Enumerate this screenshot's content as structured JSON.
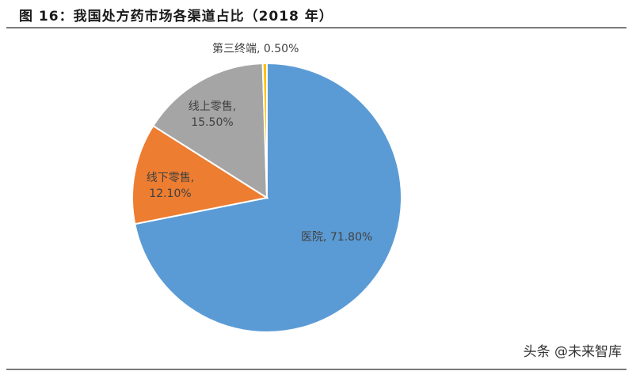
{
  "figure": {
    "title": "图 16：我国处方药市场各渠道占比（2018 年）"
  },
  "watermark": "头条 @未来智库",
  "chart_data": {
    "type": "pie",
    "title": "图 16：我国处方药市场各渠道占比（2018 年）",
    "categories": [
      "医院",
      "线下零售",
      "线上零售",
      "第三终端"
    ],
    "values": [
      71.8,
      12.1,
      15.5,
      0.5
    ],
    "unit": "%",
    "colors": [
      "#5b9bd5",
      "#ed7d31",
      "#a5a5a5",
      "#ffc000"
    ],
    "start_angle": "12 o'clock, clockwise",
    "labels": [
      {
        "text": "医院, 71.80%"
      },
      {
        "line1": "线下零售,",
        "line2": "12.10%"
      },
      {
        "line1": "线上零售,",
        "line2": "15.50%"
      },
      {
        "text": "第三终端, 0.50%"
      }
    ],
    "legend": "none"
  }
}
